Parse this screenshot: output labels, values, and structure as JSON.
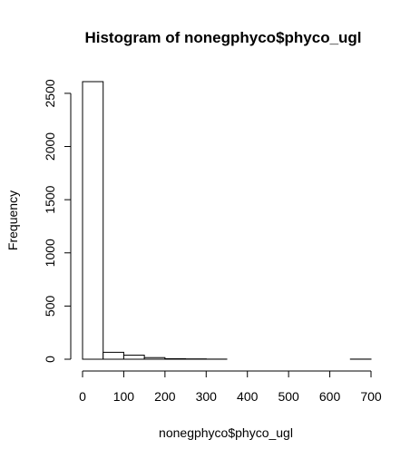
{
  "chart_data": {
    "type": "bar",
    "title": "Histogram of nonegphyco$phyco_ugl",
    "xlabel": "nonegphyco$phyco_ugl",
    "ylabel": "Frequency",
    "bin_edges": [
      0,
      50,
      100,
      150,
      200,
      250,
      300,
      350,
      400,
      450,
      500,
      550,
      600,
      650,
      700
    ],
    "values": [
      2610,
      65,
      38,
      15,
      5,
      3,
      1,
      0,
      0,
      0,
      0,
      0,
      0,
      1
    ],
    "xlim": [
      0,
      700
    ],
    "ylim": [
      0,
      2610
    ],
    "x_ticks": [
      0,
      100,
      200,
      300,
      400,
      500,
      600,
      700
    ],
    "x_tick_labels": [
      "0",
      "100",
      "200",
      "300",
      "400",
      "500",
      "600",
      "700"
    ],
    "y_ticks": [
      0,
      500,
      1000,
      1500,
      2000,
      2500
    ],
    "y_tick_labels": [
      "0",
      "500",
      "1000",
      "1500",
      "2000",
      "2500"
    ],
    "grid": false,
    "legend": "none",
    "bar_fill": "#ffffff",
    "bar_stroke": "#000000"
  }
}
